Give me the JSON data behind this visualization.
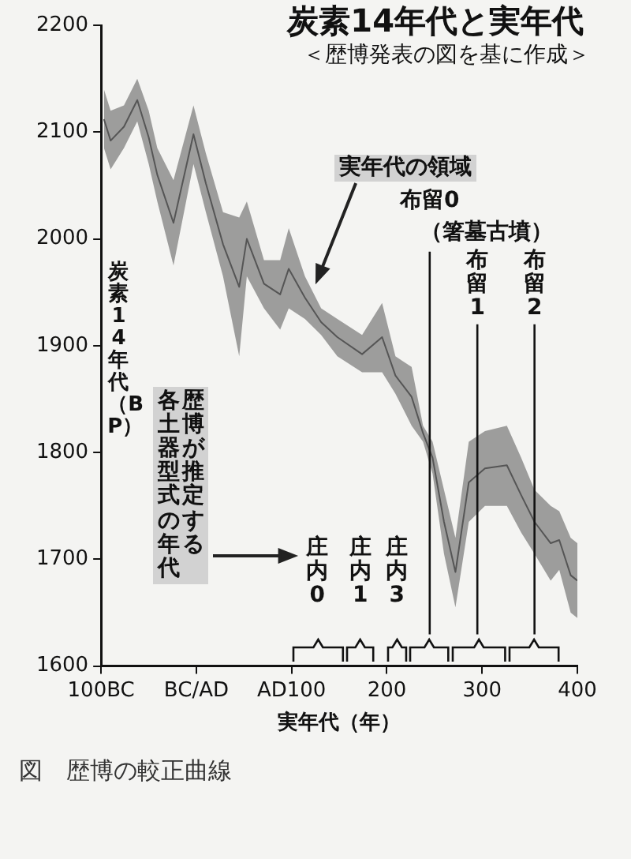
{
  "chart_data": {
    "type": "line",
    "title": "炭素14年代と実年代",
    "subtitle": "＜歴博発表の図を基に作成＞",
    "xlabel": "実年代（年）",
    "ylabel": "炭素14年代（BP）",
    "annotations": [
      "実年代の領域",
      "歴博が推定する各土器型式の年代",
      "（箸墓古墳）",
      "庄内0",
      "庄内1",
      "庄内3",
      "図　歴博の較正曲線"
    ],
    "x": [
      -97,
      -90,
      -76,
      -62,
      -50,
      -41,
      -24,
      -3,
      10,
      28,
      45,
      53,
      71,
      88,
      97,
      114,
      131,
      148,
      174,
      195,
      209,
      226,
      238,
      248,
      260,
      272,
      286,
      303,
      326,
      341,
      355,
      372,
      381,
      393,
      400
    ],
    "series": [
      {
        "color": "#555555",
        "values": [
          2112,
          2092,
          2105,
          2130,
          2095,
          2060,
          2015,
          2098,
          2052,
          1995,
          1955,
          2000,
          1958,
          1948,
          1972,
          1945,
          1922,
          1908,
          1892,
          1908,
          1872,
          1852,
          1818,
          1795,
          1735,
          1688,
          1772,
          1785,
          1788,
          1760,
          1735,
          1715,
          1718,
          1685,
          1680
        ],
        "upper": [
          2140,
          2120,
          2125,
          2150,
          2120,
          2085,
          2055,
          2125,
          2080,
          2025,
          2020,
          2035,
          1980,
          1980,
          2010,
          1965,
          1935,
          1925,
          1910,
          1940,
          1890,
          1880,
          1825,
          1810,
          1765,
          1720,
          1810,
          1820,
          1825,
          1795,
          1765,
          1750,
          1745,
          1720,
          1715
        ],
        "lower": [
          2085,
          2065,
          2085,
          2110,
          2070,
          2035,
          1975,
          2070,
          2025,
          1965,
          1890,
          1965,
          1935,
          1915,
          1935,
          1925,
          1910,
          1890,
          1875,
          1875,
          1855,
          1825,
          1810,
          1780,
          1705,
          1655,
          1735,
          1750,
          1750,
          1725,
          1705,
          1680,
          1690,
          1650,
          1645
        ]
      }
    ],
    "xlim": [
      -100,
      400
    ],
    "ylim": [
      1600,
      2200
    ],
    "xticks": [
      {
        "value": -100,
        "label": "100BC"
      },
      {
        "value": 0,
        "label": "BC/AD"
      },
      {
        "value": 100,
        "label": "AD100"
      },
      200,
      300,
      400
    ],
    "yticks": [
      1600,
      1700,
      1800,
      1900,
      2000,
      2100,
      2200
    ],
    "ref_lines": [
      {
        "axis": "x",
        "value": 245,
        "label": "布留0",
        "color": "#111111"
      },
      {
        "axis": "x",
        "value": 295,
        "label": "布留1",
        "color": "#111111"
      },
      {
        "axis": "x",
        "value": 355,
        "label": "布留2",
        "color": "#111111"
      }
    ],
    "grid": false,
    "marker": "none"
  }
}
